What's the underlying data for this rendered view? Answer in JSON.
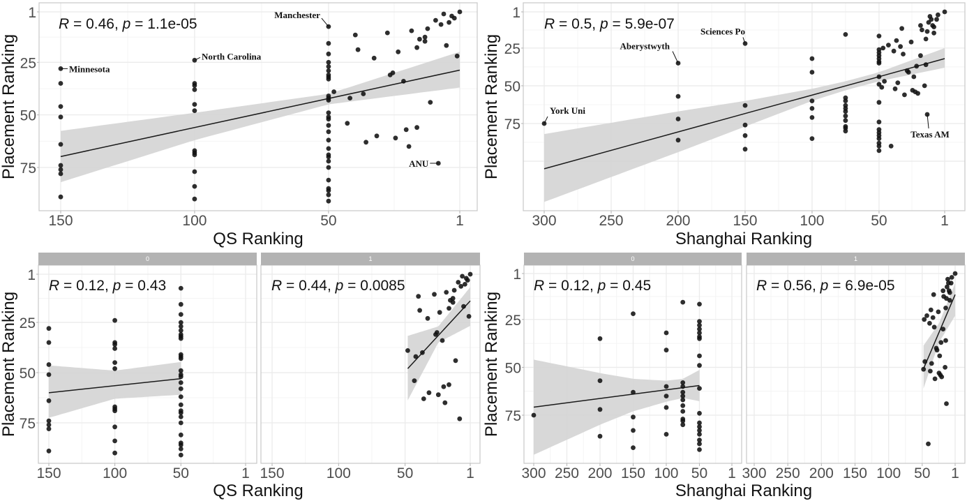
{
  "chart_data": [
    {
      "id": "qs_all",
      "type": "scatter",
      "xlabel": "QS Ranking",
      "ylabel": "Placement Ranking",
      "x_ticks": [
        150,
        100,
        50,
        1
      ],
      "y_ticks": [
        1,
        25,
        50,
        75
      ],
      "x_reversed": true,
      "y_reversed": true,
      "grid": true,
      "stat": {
        "r_label": "R",
        "r_text": " = 0.46, ",
        "p_label": "p",
        "p_text": " = 1.1e-05"
      },
      "fit": {
        "line": [
          [
            150,
            69.8
          ],
          [
            1,
            28.7
          ]
        ],
        "ci": [
          [
            150,
            57.6,
            82
          ],
          [
            100,
            49,
            62
          ],
          [
            50,
            40,
            45
          ],
          [
            1,
            20,
            37
          ]
        ]
      },
      "annotations": [
        {
          "label": "Minnesota",
          "x": 150,
          "y": 28
        },
        {
          "label": "North Carolina",
          "x": 100,
          "y": 24
        },
        {
          "label": "Manchester",
          "x": 50,
          "y": 8
        },
        {
          "label": "ANU",
          "x": 9,
          "y": 73
        }
      ],
      "points": [
        [
          150,
          28,
          0
        ],
        [
          150,
          35,
          0
        ],
        [
          150,
          46,
          0
        ],
        [
          150,
          51,
          0
        ],
        [
          150,
          64,
          0
        ],
        [
          150,
          74,
          0
        ],
        [
          150,
          76,
          0
        ],
        [
          150,
          78,
          0
        ],
        [
          150,
          89,
          0
        ],
        [
          100,
          24,
          0
        ],
        [
          100,
          35,
          0
        ],
        [
          100,
          36,
          0
        ],
        [
          100,
          38,
          0
        ],
        [
          100,
          45,
          0
        ],
        [
          100,
          48,
          0
        ],
        [
          100,
          67,
          0
        ],
        [
          100,
          68,
          0
        ],
        [
          100,
          69,
          0
        ],
        [
          100,
          77,
          0
        ],
        [
          100,
          84,
          0
        ],
        [
          100,
          90,
          0
        ],
        [
          50,
          8,
          0
        ],
        [
          50,
          16,
          0
        ],
        [
          50,
          21,
          0
        ],
        [
          50,
          25,
          0
        ],
        [
          50,
          27,
          0
        ],
        [
          50,
          29,
          0
        ],
        [
          50,
          31,
          0
        ],
        [
          50,
          32,
          0
        ],
        [
          50,
          33,
          0
        ],
        [
          50,
          41,
          0
        ],
        [
          50,
          42,
          0
        ],
        [
          50,
          43,
          0
        ],
        [
          50,
          49,
          0
        ],
        [
          50,
          51,
          0
        ],
        [
          50,
          52,
          0
        ],
        [
          50,
          55,
          0
        ],
        [
          50,
          58,
          0
        ],
        [
          50,
          62,
          0
        ],
        [
          50,
          66,
          0
        ],
        [
          50,
          69,
          0
        ],
        [
          50,
          70,
          0
        ],
        [
          50,
          72,
          0
        ],
        [
          50,
          75,
          0
        ],
        [
          50,
          81,
          0
        ],
        [
          50,
          85,
          0
        ],
        [
          50,
          86,
          0
        ],
        [
          50,
          88,
          0
        ],
        [
          50,
          91,
          0
        ],
        [
          48,
          39,
          1
        ],
        [
          42,
          42,
          1
        ],
        [
          43,
          54,
          1
        ],
        [
          40,
          12,
          1
        ],
        [
          39,
          19,
          1
        ],
        [
          37,
          40,
          1
        ],
        [
          36,
          63,
          1
        ],
        [
          33,
          23,
          1
        ],
        [
          32,
          60,
          1
        ],
        [
          28,
          11,
          1
        ],
        [
          27,
          31,
          1
        ],
        [
          26,
          30,
          1
        ],
        [
          25,
          61,
          1
        ],
        [
          24,
          20,
          1
        ],
        [
          22,
          34,
          1
        ],
        [
          21,
          57,
          1
        ],
        [
          20,
          65,
          1
        ],
        [
          19,
          10,
          1
        ],
        [
          17,
          56,
          1
        ],
        [
          17,
          18,
          1
        ],
        [
          16,
          14,
          1
        ],
        [
          14,
          13,
          1
        ],
        [
          14,
          15,
          1
        ],
        [
          13,
          9,
          1
        ],
        [
          12,
          44,
          1
        ],
        [
          10,
          5,
          1
        ],
        [
          9,
          73,
          1
        ],
        [
          8,
          7,
          1
        ],
        [
          7,
          2,
          1
        ],
        [
          6,
          17,
          1
        ],
        [
          5,
          6,
          1
        ],
        [
          4,
          3,
          1
        ],
        [
          3,
          4,
          1
        ],
        [
          2,
          22,
          1
        ],
        [
          1,
          1,
          1
        ]
      ]
    },
    {
      "id": "shanghai_all",
      "type": "scatter",
      "xlabel": "Shanghai Ranking",
      "ylabel": "Placement Ranking",
      "x_ticks": [
        300,
        250,
        200,
        150,
        100,
        50,
        1
      ],
      "y_ticks": [
        1,
        25,
        50,
        75
      ],
      "x_reversed": true,
      "y_reversed": true,
      "grid": true,
      "stat": {
        "r_label": "R",
        "r_text": " = 0.5, ",
        "p_label": "p",
        "p_text": " = 5.9e-07"
      },
      "fit": {
        "line": [
          [
            300,
            105
          ],
          [
            1,
            32
          ]
        ],
        "ci": [
          [
            300,
            82,
            127
          ],
          [
            200,
            67,
            94
          ],
          [
            150,
            60,
            77
          ],
          [
            100,
            52,
            60
          ],
          [
            75,
            47,
            53
          ],
          [
            50,
            41,
            47
          ],
          [
            1,
            25,
            38
          ]
        ]
      },
      "annotations": [
        {
          "label": "York Uni",
          "x": 300,
          "y": 75
        },
        {
          "label": "Aberystwyth",
          "x": 200,
          "y": 35
        },
        {
          "label": "Sciences Po",
          "x": 150,
          "y": 22
        },
        {
          "label": "Texas AM",
          "x": 14,
          "y": 69
        }
      ],
      "points": [
        [
          300,
          75,
          0
        ],
        [
          200,
          35,
          0
        ],
        [
          200,
          57,
          0
        ],
        [
          200,
          72,
          0
        ],
        [
          200,
          86,
          0
        ],
        [
          150,
          22,
          0
        ],
        [
          150,
          63,
          0
        ],
        [
          150,
          76,
          0
        ],
        [
          150,
          83,
          0
        ],
        [
          150,
          92,
          0
        ],
        [
          100,
          32,
          0
        ],
        [
          100,
          41,
          0
        ],
        [
          100,
          60,
          0
        ],
        [
          100,
          65,
          0
        ],
        [
          100,
          71,
          0
        ],
        [
          100,
          85,
          0
        ],
        [
          75,
          16,
          0
        ],
        [
          75,
          58,
          0
        ],
        [
          75,
          60,
          0
        ],
        [
          75,
          63,
          0
        ],
        [
          75,
          65,
          0
        ],
        [
          75,
          67,
          0
        ],
        [
          75,
          70,
          0
        ],
        [
          75,
          73,
          0
        ],
        [
          75,
          77,
          0
        ],
        [
          75,
          78,
          0
        ],
        [
          75,
          80,
          0
        ],
        [
          50,
          17,
          0
        ],
        [
          50,
          26,
          0
        ],
        [
          50,
          28,
          0
        ],
        [
          50,
          30,
          0
        ],
        [
          50,
          32,
          0
        ],
        [
          50,
          34,
          0
        ],
        [
          50,
          35,
          0
        ],
        [
          50,
          44,
          0
        ],
        [
          50,
          49,
          0
        ],
        [
          50,
          61,
          0
        ],
        [
          50,
          74,
          0
        ],
        [
          50,
          79,
          0
        ],
        [
          50,
          81,
          0
        ],
        [
          50,
          83,
          0
        ],
        [
          50,
          85,
          0
        ],
        [
          50,
          88,
          0
        ],
        [
          50,
          90,
          0
        ],
        [
          50,
          93,
          0
        ],
        [
          48,
          51,
          1
        ],
        [
          46,
          47,
          1
        ],
        [
          41,
          90,
          1
        ],
        [
          47,
          25,
          1
        ],
        [
          43,
          23,
          1
        ],
        [
          39,
          27,
          1
        ],
        [
          38,
          52,
          1
        ],
        [
          37,
          20,
          1
        ],
        [
          36,
          48,
          1
        ],
        [
          34,
          24,
          1
        ],
        [
          33,
          12,
          1
        ],
        [
          32,
          29,
          1
        ],
        [
          31,
          56,
          1
        ],
        [
          29,
          40,
          1
        ],
        [
          28,
          41,
          1
        ],
        [
          26,
          21,
          1
        ],
        [
          25,
          53,
          1
        ],
        [
          24,
          44,
          1
        ],
        [
          23,
          54,
          1
        ],
        [
          22,
          37,
          1
        ],
        [
          21,
          55,
          1
        ],
        [
          19,
          30,
          1
        ],
        [
          19,
          10,
          1
        ],
        [
          18,
          13,
          1
        ],
        [
          16,
          50,
          1
        ],
        [
          15,
          36,
          1
        ],
        [
          15,
          19,
          1
        ],
        [
          14,
          69,
          1
        ],
        [
          14,
          14,
          1
        ],
        [
          13,
          8,
          1
        ],
        [
          12,
          4,
          1
        ],
        [
          11,
          6,
          1
        ],
        [
          10,
          10,
          1
        ],
        [
          9,
          11,
          1
        ],
        [
          9,
          15,
          1
        ],
        [
          7,
          6,
          1
        ],
        [
          6,
          3,
          1
        ],
        [
          1,
          1,
          1
        ]
      ]
    },
    {
      "id": "qs_facet",
      "type": "scatter",
      "points_from": "qs_all",
      "xlabel": "QS Ranking",
      "ylabel": "Placement Ranking",
      "x_ticks": [
        150,
        100,
        50,
        1
      ],
      "y_ticks": [
        1,
        25,
        50,
        75
      ],
      "x_reversed": true,
      "y_reversed": true,
      "grid": true,
      "facets": [
        {
          "strip": "0",
          "group": 0,
          "stat": {
            "r_label": "R",
            "r_text": " = 0.12, ",
            "p_label": "p",
            "p_text": " = 0.43"
          },
          "fit": {
            "line": [
              [
                150,
                60
              ],
              [
                50,
                53
              ]
            ],
            "ci": [
              [
                150,
                46.4,
                72.5
              ],
              [
                100,
                49,
                63
              ],
              [
                50,
                44.7,
                61
              ]
            ]
          }
        },
        {
          "strip": "1",
          "group": 1,
          "stat": {
            "r_label": "R",
            "r_text": " = 0.44, ",
            "p_label": "p",
            "p_text": " = 0.0085"
          },
          "fit": {
            "line": [
              [
                48,
                48
              ],
              [
                1,
                14.3
              ]
            ],
            "ci": [
              [
                48,
                31.7,
                63.8
              ],
              [
                25,
                27,
                35
              ],
              [
                1,
                7.4,
                26.7
              ]
            ]
          }
        }
      ]
    },
    {
      "id": "shanghai_facet",
      "type": "scatter",
      "points_from": "shanghai_all",
      "xlabel": "Shanghai Ranking",
      "ylabel": "Placement Ranking",
      "x_ticks": [
        300,
        250,
        200,
        150,
        100,
        50,
        1
      ],
      "y_ticks": [
        1,
        25,
        50,
        75
      ],
      "x_reversed": true,
      "y_reversed": true,
      "grid": true,
      "facets": [
        {
          "strip": "0",
          "group": 0,
          "stat": {
            "r_label": "R",
            "r_text": " = 0.12, ",
            "p_label": "p",
            "p_text": " = 0.45"
          },
          "fit": {
            "line": [
              [
                300,
                70.8
              ],
              [
                50,
                59.5
              ]
            ],
            "ci": [
              [
                300,
                46,
                95.7
              ],
              [
                200,
                53,
                80
              ],
              [
                150,
                56,
                73
              ],
              [
                100,
                57,
                68
              ],
              [
                75,
                56,
                66
              ],
              [
                50,
                51.4,
                67.7
              ]
            ]
          }
        },
        {
          "strip": "1",
          "group": 1,
          "stat": {
            "r_label": "R",
            "r_text": " = 0.56, ",
            "p_label": "p",
            "p_text": " = 6.9e-05"
          },
          "fit": {
            "line": [
              [
                48,
                50.7
              ],
              [
                1,
                12
              ]
            ],
            "ci": [
              [
                48,
                38.6,
                61
              ],
              [
                25,
                27,
                37
              ],
              [
                1,
                6,
                23
              ]
            ]
          }
        }
      ]
    }
  ],
  "colors": {
    "points": "#111111",
    "ci_band": "#d4d4d4",
    "fit_line": "#1a1a1a",
    "strip": "#b3b3b3",
    "grid": "#ebebeb"
  }
}
